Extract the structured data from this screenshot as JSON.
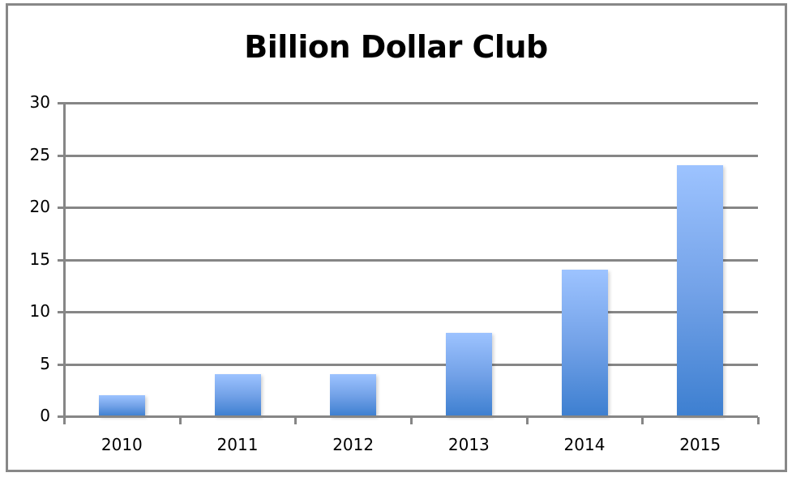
{
  "chart_data": {
    "type": "bar",
    "title": "Billion Dollar Club",
    "xlabel": "",
    "ylabel": "",
    "categories": [
      "2010",
      "2011",
      "2012",
      "2013",
      "2014",
      "2015"
    ],
    "values": [
      2,
      4,
      4,
      8,
      14,
      24
    ],
    "ylim": [
      0,
      30
    ],
    "yticks": [
      "0",
      "5",
      "10",
      "15",
      "20",
      "25",
      "30"
    ],
    "grid": true,
    "legend": "none",
    "bar_color": "#5b8fdc"
  }
}
